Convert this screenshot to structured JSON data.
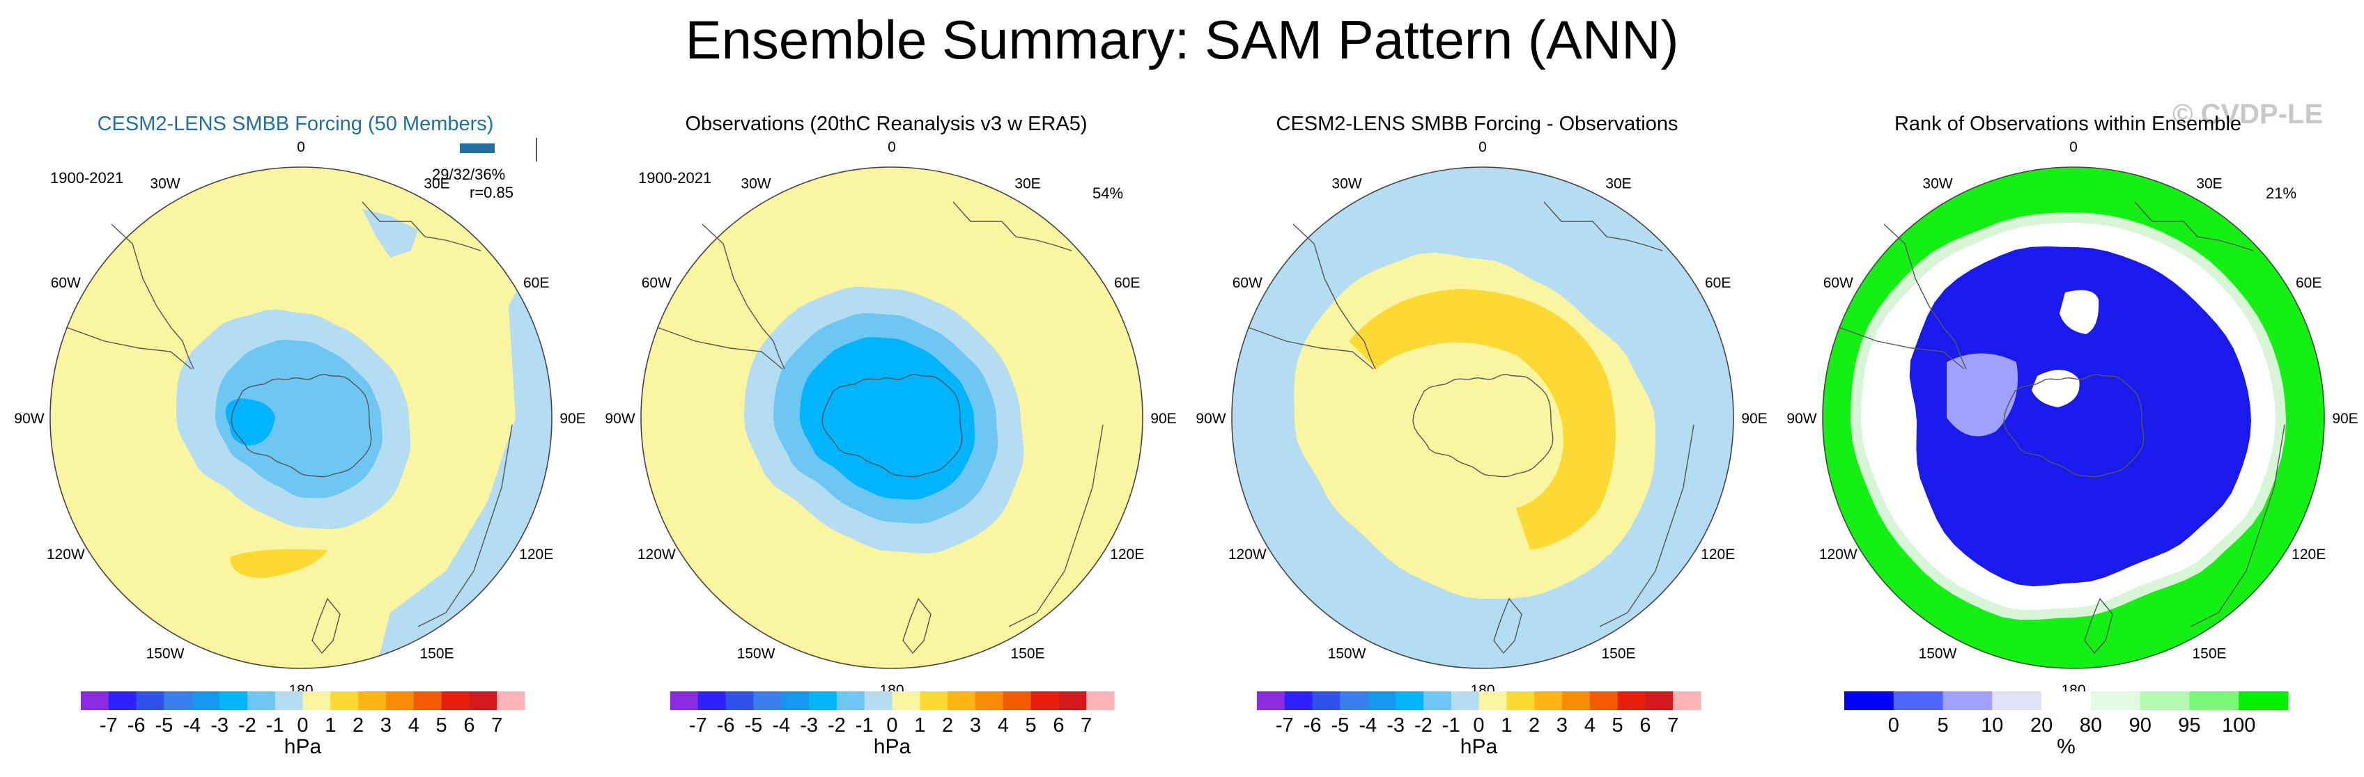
{
  "title": "Ensemble Summary: SAM Pattern (ANN)",
  "watermark": "© CVDP-LE",
  "colors": {
    "scale": [
      "#8a2be2",
      "#2d22ff",
      "#2f52ea",
      "#3a7ef0",
      "#1596ef",
      "#00b4ff",
      "#6ec6f2",
      "#b4dcf2",
      "#faf5a0",
      "#fdd934",
      "#fdb415",
      "#fb8a05",
      "#f55a00",
      "#e81e0a",
      "#d2191e",
      "#fdb4b4"
    ],
    "rank_scale": [
      "#0000ff",
      "#5064ff",
      "#a0a0ff",
      "#e1e1fa",
      "#ffffff",
      "#e1fae1",
      "#b4fab4",
      "#78fa78",
      "#00f000"
    ],
    "pale_yellow": "#faf5a0",
    "light_blue": "#b4dcf2",
    "mid_blue": "#6ec6f2",
    "cyan": "#1596ef",
    "strong_blue": "#00b4ff",
    "gold": "#fdd934",
    "rank_blue": "#1a1aee",
    "rank_white": "#ffffff",
    "rank_green": "#14f014",
    "title_blue": "#1f6fa0"
  },
  "panels": [
    {
      "title": "CESM2-LENS SMBB Forcing (50 Members)",
      "period": "1900-2021",
      "stats_line1": "29/32/36%",
      "stats_line2": "r=0.85",
      "colorbar_labels": [
        "-7",
        "-6",
        "-5",
        "-4",
        "-3",
        "-2",
        "-1",
        "0",
        "1",
        "2",
        "3",
        "4",
        "5",
        "6",
        "7"
      ],
      "units": "hPa"
    },
    {
      "title": "Observations (20thC Reanalysis v3 w ERA5)",
      "period": "1900-2021",
      "percent": "54%",
      "colorbar_labels": [
        "-7",
        "-6",
        "-5",
        "-4",
        "-3",
        "-2",
        "-1",
        "0",
        "1",
        "2",
        "3",
        "4",
        "5",
        "6",
        "7"
      ],
      "units": "hPa"
    },
    {
      "title": "CESM2-LENS SMBB Forcing - Observations",
      "colorbar_labels": [
        "-7",
        "-6",
        "-5",
        "-4",
        "-3",
        "-2",
        "-1",
        "0",
        "1",
        "2",
        "3",
        "4",
        "5",
        "6",
        "7"
      ],
      "units": "hPa"
    },
    {
      "title": "Rank of Observations within Ensemble",
      "percent": "21%",
      "colorbar_labels": [
        "0",
        "5",
        "10",
        "20",
        "80",
        "90",
        "95",
        "100"
      ],
      "units": "%"
    }
  ],
  "map_labels": [
    "0",
    "30E",
    "60E",
    "90E",
    "120E",
    "150E",
    "180",
    "150W",
    "120W",
    "90W",
    "60W",
    "30W"
  ],
  "chart_data": [
    {
      "type": "heatmap",
      "title": "CESM2-LENS SMBB Forcing (50 Members)",
      "projection": "south polar stereographic",
      "variable": "SAM pattern (sea level pressure)",
      "units": "hPa",
      "levels": [
        -7,
        -6,
        -5,
        -4,
        -3,
        -2,
        -1,
        0,
        1,
        2,
        3,
        4,
        5,
        6,
        7
      ],
      "features": [
        {
          "region": "Antarctic interior (West Antarctica / Bellingshausen)",
          "value_range": [
            -3,
            -2
          ]
        },
        {
          "region": "Antarctica / high latitudes",
          "value_range": [
            -2,
            -1
          ]
        },
        {
          "region": "surrounding ring",
          "value_range": [
            -1,
            0
          ]
        },
        {
          "region": "mid-latitudes",
          "value_range": [
            0,
            1
          ]
        },
        {
          "region": "South Pacific near 130W, 45S",
          "value_range": [
            1,
            2
          ]
        },
        {
          "region": "Indian Ocean / Australia sector",
          "value_range": [
            -1,
            0
          ]
        }
      ],
      "annotations": {
        "period": "1900-2021",
        "explained_variance": "29/32/36%",
        "pattern_correlation": 0.85
      }
    },
    {
      "type": "heatmap",
      "title": "Observations (20thC Reanalysis v3 w ERA5)",
      "projection": "south polar stereographic",
      "units": "hPa",
      "levels": [
        -7,
        -6,
        -5,
        -4,
        -3,
        -2,
        -1,
        0,
        1,
        2,
        3,
        4,
        5,
        6,
        7
      ],
      "features": [
        {
          "region": "Antarctica core",
          "value_range": [
            -3,
            -2
          ]
        },
        {
          "region": "inner ring",
          "value_range": [
            -2,
            -1
          ]
        },
        {
          "region": "outer ring",
          "value_range": [
            -1,
            0
          ]
        },
        {
          "region": "mid-latitudes",
          "value_range": [
            0,
            1
          ]
        }
      ],
      "annotations": {
        "period": "1900-2021",
        "explained_variance": "54%"
      }
    },
    {
      "type": "heatmap",
      "title": "CESM2-LENS SMBB Forcing - Observations",
      "projection": "south polar stereographic",
      "units": "hPa",
      "levels": [
        -7,
        -6,
        -5,
        -4,
        -3,
        -2,
        -1,
        0,
        1,
        2,
        3,
        4,
        5,
        6,
        7
      ],
      "features": [
        {
          "region": "crescent around East Antarctica",
          "value_range": [
            1,
            2
          ]
        },
        {
          "region": "Antarctica / middle ring",
          "value_range": [
            0,
            1
          ]
        },
        {
          "region": "outer mid-latitudes",
          "value_range": [
            -1,
            0
          ]
        }
      ]
    },
    {
      "type": "heatmap",
      "title": "Rank of Observations within Ensemble",
      "projection": "south polar stereographic",
      "units": "%",
      "levels": [
        0,
        5,
        10,
        20,
        80,
        90,
        95,
        100
      ],
      "features": [
        {
          "region": "Antarctica and surrounding ocean",
          "value_range": [
            0,
            5
          ]
        },
        {
          "region": "transition ring",
          "value_range": [
            20,
            80
          ]
        },
        {
          "region": "outer mid-latitudes",
          "value_range": [
            95,
            100
          ]
        }
      ],
      "annotations": {
        "percent": "21%"
      }
    }
  ]
}
